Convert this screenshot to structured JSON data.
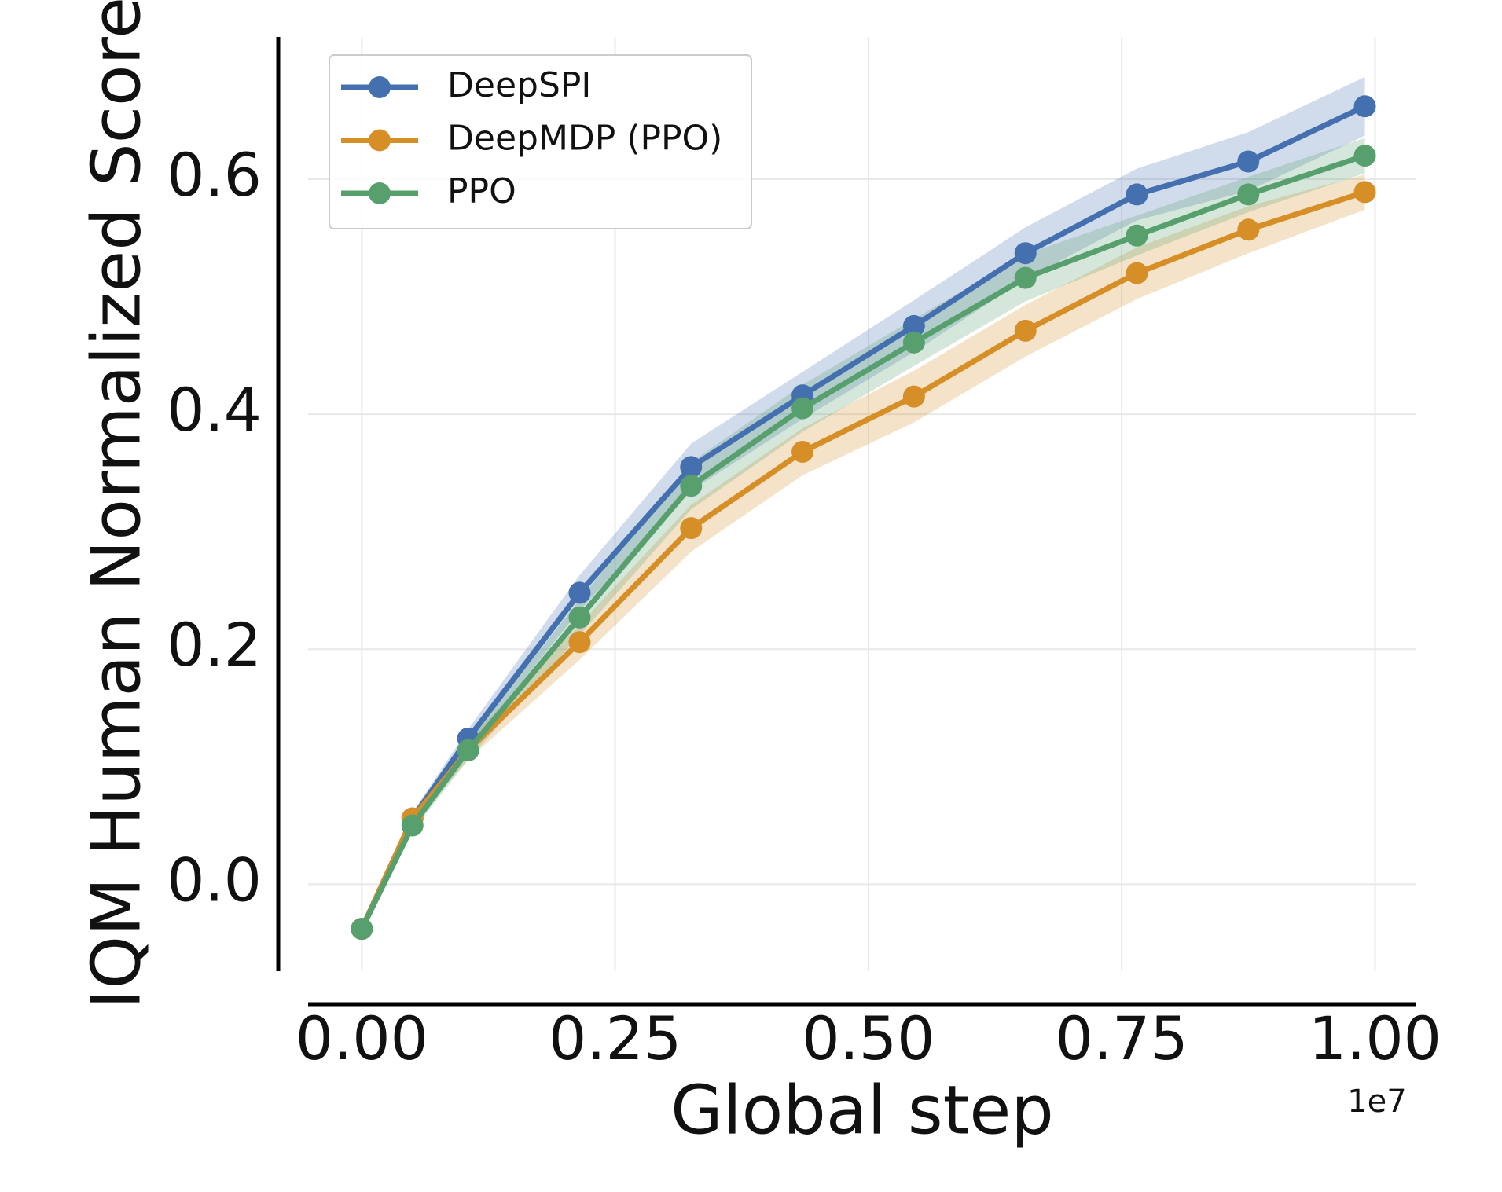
{
  "chart_data": {
    "type": "line",
    "x_label": "Global step",
    "y_label": "IQM Human Normalized Score",
    "x_offset_label": "1e7",
    "x": [
      0,
      0.05,
      0.105,
      0.215,
      0.325,
      0.435,
      0.545,
      0.655,
      0.765,
      0.875,
      0.99
    ],
    "series": [
      {
        "name": "DeepSPI",
        "color": "#4470b0",
        "values": [
          -0.038,
          0.056,
          0.124,
          0.248,
          0.355,
          0.416,
          0.475,
          0.537,
          0.587,
          0.615,
          0.662
        ],
        "lower": [
          -0.038,
          0.051,
          0.116,
          0.233,
          0.335,
          0.396,
          0.453,
          0.515,
          0.565,
          0.59,
          0.637
        ],
        "upper": [
          -0.038,
          0.061,
          0.132,
          0.263,
          0.375,
          0.436,
          0.497,
          0.559,
          0.609,
          0.64,
          0.687
        ]
      },
      {
        "name": "DeepMDP (PPO)",
        "color": "#d68f27",
        "values": [
          -0.038,
          0.056,
          0.114,
          0.206,
          0.303,
          0.368,
          0.415,
          0.471,
          0.52,
          0.557,
          0.589
        ],
        "lower": [
          -0.038,
          0.051,
          0.106,
          0.191,
          0.283,
          0.348,
          0.393,
          0.449,
          0.498,
          0.537,
          0.574
        ],
        "upper": [
          -0.038,
          0.061,
          0.122,
          0.221,
          0.323,
          0.388,
          0.437,
          0.493,
          0.542,
          0.577,
          0.604
        ]
      },
      {
        "name": "PPO",
        "color": "#57a06e",
        "values": [
          -0.038,
          0.05,
          0.114,
          0.227,
          0.339,
          0.405,
          0.461,
          0.516,
          0.552,
          0.587,
          0.62
        ],
        "lower": [
          -0.038,
          0.045,
          0.106,
          0.212,
          0.319,
          0.385,
          0.441,
          0.496,
          0.535,
          0.572,
          0.605
        ],
        "upper": [
          -0.038,
          0.055,
          0.122,
          0.242,
          0.359,
          0.425,
          0.481,
          0.536,
          0.569,
          0.602,
          0.635
        ]
      }
    ],
    "xlim": [
      -0.053,
      1.04
    ],
    "ylim": [
      -0.074,
      0.721
    ],
    "xticks": [
      {
        "value": 0,
        "label": "0.00"
      },
      {
        "value": 0.25,
        "label": "0.25"
      },
      {
        "value": 0.5,
        "label": "0.50"
      },
      {
        "value": 0.75,
        "label": "0.75"
      },
      {
        "value": 1,
        "label": "1.00"
      }
    ],
    "yticks": [
      {
        "value": 0,
        "label": "0.0"
      },
      {
        "value": 0.2,
        "label": "0.2"
      },
      {
        "value": 0.4,
        "label": "0.4"
      },
      {
        "value": 0.6,
        "label": "0.6"
      }
    ],
    "grid": true,
    "legend": "upper left"
  }
}
